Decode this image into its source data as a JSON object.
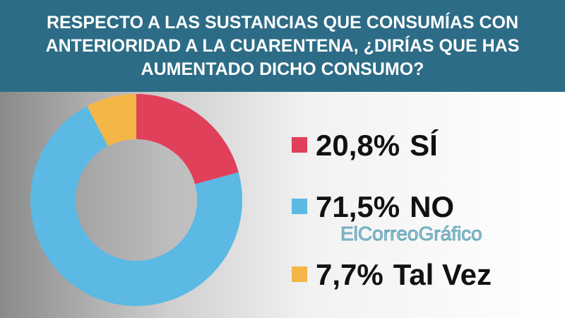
{
  "chart_data": {
    "type": "pie",
    "title": "RESPECTO A LAS SUSTANCIAS QUE CONSUMÍAS CON ANTERIORIDAD A LA CUARENTENA, ¿DIRÍAS QUE HAS AUMENTADO DICHO CONSUMO?",
    "categories": [
      "SÍ",
      "NO",
      "Tal Vez"
    ],
    "values": [
      20.8,
      71.5,
      7.7
    ],
    "value_labels": [
      "20,8%",
      "71,5%",
      "7,7%"
    ],
    "colors": [
      "#e0405a",
      "#5bb9e4",
      "#f3b647"
    ],
    "watermark": "ElCorreoGráfico"
  }
}
